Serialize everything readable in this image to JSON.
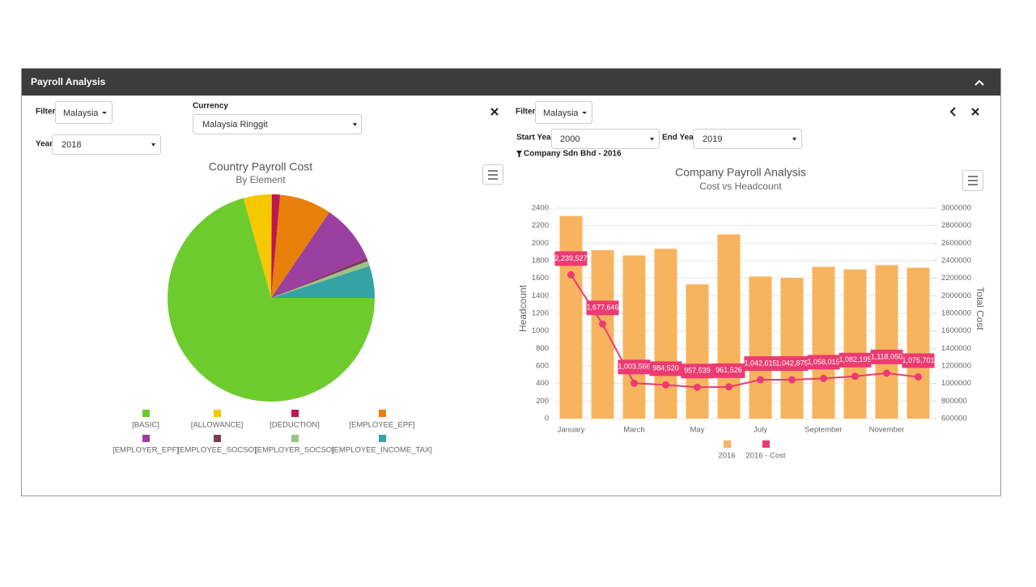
{
  "header": {
    "title": "Payroll Analysis"
  },
  "left_controls": {
    "filter_label": "Filter",
    "filter_value": "Malaysia",
    "currency_label": "Currency",
    "currency_value": "Malaysia Ringgit",
    "year_label": "Year",
    "year_value": "2018"
  },
  "right_controls": {
    "filter_label": "Filter",
    "filter_value": "Malaysia",
    "start_year_label": "Start Year",
    "start_year_value": "2000",
    "end_year_label": "End Year",
    "end_year_value": "2019",
    "breadcrumb": "Company Sdn Bhd - 2016"
  },
  "chart_data": [
    {
      "type": "pie",
      "title": "Country Payroll Cost",
      "subtitle": "By Element",
      "categories": [
        "[BASIC]",
        "[ALLOWANCE]",
        "[DEDUCTION]",
        "[EMPLOYEE_EPF]",
        "[EMPLOYER_EPF]",
        "[EMPLOYEE_SOCSO]",
        "[EMPLOYER_SOCSO]",
        "[EMPLOYEE_INCOME_TAX]"
      ],
      "values": [
        70.7,
        4.4,
        1.3,
        8.1,
        9.2,
        0.5,
        0.8,
        5.0
      ],
      "colors": [
        "#6ecb2e",
        "#f5c800",
        "#c0174f",
        "#e8800a",
        "#9b3fa0",
        "#7a3b54",
        "#a0c08a",
        "#34a3a4"
      ]
    },
    {
      "type": "bar",
      "title": "Company Payroll Analysis",
      "subtitle": "Cost vs Headcount",
      "categories": [
        "January",
        null,
        "March",
        null,
        "May",
        null,
        "July",
        null,
        "September",
        null,
        "November",
        null
      ],
      "y_label": "Headcount",
      "y2_label": "Total Cost",
      "ylim": [
        0,
        2400
      ],
      "yticks": [
        0,
        200,
        400,
        600,
        800,
        1000,
        1200,
        1400,
        1600,
        1800,
        2000,
        2200,
        2400
      ],
      "y2lim": [
        600000,
        3000000
      ],
      "y2ticks": [
        600000,
        800000,
        1000000,
        1200000,
        1400000,
        1600000,
        1800000,
        2000000,
        2200000,
        2400000,
        2600000,
        2800000,
        3000000
      ],
      "grid": true,
      "series": [
        {
          "name": "2016",
          "type": "bar",
          "color": "#f8b35e",
          "values": [
            2310,
            1920,
            1860,
            1935,
            1530,
            2100,
            1620,
            1605,
            1730,
            1700,
            1750,
            1720
          ]
        },
        {
          "name": "2016 - Cost",
          "type": "line",
          "axis": "y2",
          "color": "#ec3a72",
          "values": [
            2239527,
            1677646,
            1003566,
            984520,
            957539,
            961526,
            1042615,
            1042875,
            1058015,
            1082195,
            1118050,
            1075701
          ],
          "value_labels": [
            "2,239,527",
            "1,677,646",
            "1,003,566",
            "984,520",
            "957,539",
            "961,526",
            "1,042,615",
            "1,042,875",
            "1,058,015",
            "1,082,195",
            "1,118,050",
            "1,075,701"
          ]
        }
      ]
    }
  ]
}
